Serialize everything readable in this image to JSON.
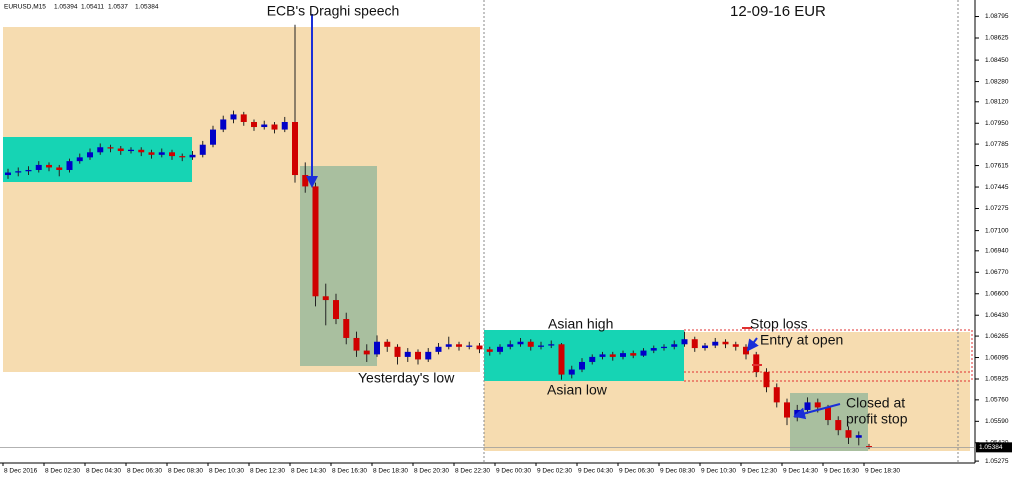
{
  "chart_data": {
    "type": "candlestick",
    "symbol": "EURUSD,M15",
    "title": "12-09-16  EUR",
    "annotations": [
      "ECB's Draghi speech",
      "Asian high",
      "Asian low",
      "Yesterday's low",
      "Stop loss",
      "Entry at open",
      "Closed at",
      "profit stop"
    ],
    "up_color": "#0000c8",
    "down_color": "#d00000",
    "ylim": [
      1.0526,
      1.0891
    ],
    "yticks": [
      1.08795,
      1.08625,
      {
        "value": 1.0845,
        "label": "1.08450"
      },
      {
        "value": 1.0828,
        "label": "1.08280"
      },
      {
        "value": 1.0812,
        "label": "1.08120"
      },
      {
        "value": 1.0795,
        "label": "1.07950"
      },
      1.07785,
      1.07615,
      1.07445,
      1.07275,
      {
        "value": 1.071,
        "label": "1.07100"
      },
      {
        "value": 1.0694,
        "label": "1.06940"
      },
      {
        "value": 1.0677,
        "label": "1.06770"
      },
      {
        "value": 1.066,
        "label": "1.06600"
      },
      {
        "value": 1.0643,
        "label": "1.06430"
      },
      1.06265,
      1.06095,
      1.05925,
      {
        "value": 1.0576,
        "label": "1.05760"
      },
      {
        "value": 1.0559,
        "label": "1.05590"
      },
      {
        "value": 1.0542,
        "label": "1.05420"
      },
      1.05275
    ],
    "x_labels": [
      "8 Dec 2016",
      "8 Dec 02:30",
      "8 Dec 04:30",
      "8 Dec 06:30",
      "8 Dec 08:30",
      "8 Dec 10:30",
      "8 Dec 12:30",
      "8 Dec 14:30",
      "8 Dec 16:30",
      "8 Dec 18:30",
      "8 Dec 20:30",
      "8 Dec 22:30",
      "9 Dec 00:30",
      "9 Dec 02:30",
      "9 Dec 04:30",
      "9 Dec 06:30",
      "9 Dec 08:30",
      "9 Dec 10:30",
      "9 Dec 12:30",
      "9 Dec 14:30",
      "9 Dec 16:30",
      "9 Dec 18:30"
    ],
    "ohlc": [
      [
        1.0754,
        1.0759,
        1.0751,
        1.0756
      ],
      [
        1.0756,
        1.076,
        1.0753,
        1.0757
      ],
      [
        1.0757,
        1.0761,
        1.0754,
        1.0758
      ],
      [
        1.0758,
        1.0765,
        1.0756,
        1.0762
      ],
      [
        1.0762,
        1.0764,
        1.0757,
        1.076
      ],
      [
        1.076,
        1.0762,
        1.0753,
        1.0758
      ],
      [
        1.0758,
        1.0767,
        1.0756,
        1.0765
      ],
      [
        1.0765,
        1.0771,
        1.0763,
        1.0768
      ],
      [
        1.0768,
        1.0775,
        1.0766,
        1.0772
      ],
      [
        1.0772,
        1.0779,
        1.077,
        1.0776
      ],
      [
        1.0776,
        1.0778,
        1.0772,
        1.0775
      ],
      [
        1.0775,
        1.0777,
        1.077,
        1.0773
      ],
      [
        1.0773,
        1.0776,
        1.0771,
        1.0774
      ],
      [
        1.0774,
        1.0776,
        1.0769,
        1.0772
      ],
      [
        1.0772,
        1.0774,
        1.0767,
        1.077
      ],
      [
        1.077,
        1.0775,
        1.0768,
        1.0772
      ],
      [
        1.0772,
        1.0774,
        1.0766,
        1.0769
      ],
      [
        1.0769,
        1.0771,
        1.0765,
        1.0768
      ],
      [
        1.0768,
        1.0773,
        1.0766,
        1.077
      ],
      [
        1.077,
        1.0781,
        1.0768,
        1.0778
      ],
      [
        1.0778,
        1.0793,
        1.0776,
        1.079
      ],
      [
        1.079,
        1.0801,
        1.0788,
        1.0798
      ],
      [
        1.0798,
        1.0805,
        1.0795,
        1.0802
      ],
      [
        1.0802,
        1.0804,
        1.0793,
        1.0796
      ],
      [
        1.0796,
        1.0798,
        1.0789,
        1.0792
      ],
      [
        1.0792,
        1.0797,
        1.079,
        1.0794
      ],
      [
        1.0794,
        1.0796,
        1.0787,
        1.079
      ],
      [
        1.079,
        1.08,
        1.0788,
        1.0796
      ],
      [
        1.0796,
        1.0873,
        1.0748,
        1.0754
      ],
      [
        1.0754,
        1.0764,
        1.074,
        1.0745
      ],
      [
        1.0745,
        1.0748,
        1.065,
        1.0658
      ],
      [
        1.0658,
        1.0668,
        1.0635,
        1.0655
      ],
      [
        1.0655,
        1.066,
        1.0636,
        1.064
      ],
      [
        1.064,
        1.0645,
        1.062,
        1.0625
      ],
      [
        1.0625,
        1.063,
        1.061,
        1.0615
      ],
      [
        1.0615,
        1.062,
        1.0606,
        1.0612
      ],
      [
        1.0612,
        1.0627,
        1.061,
        1.0622
      ],
      [
        1.0622,
        1.0624,
        1.0614,
        1.0618
      ],
      [
        1.0618,
        1.062,
        1.0604,
        1.061
      ],
      [
        1.061,
        1.0617,
        1.0606,
        1.0614
      ],
      [
        1.0614,
        1.0616,
        1.0604,
        1.0608
      ],
      [
        1.0608,
        1.0617,
        1.0606,
        1.0614
      ],
      [
        1.0614,
        1.0621,
        1.0612,
        1.0618
      ],
      [
        1.0618,
        1.0626,
        1.0616,
        1.062
      ],
      [
        1.062,
        1.0622,
        1.0615,
        1.0618
      ],
      [
        1.0618,
        1.0622,
        1.0616,
        1.0619
      ],
      [
        1.0619,
        1.0621,
        1.0613,
        1.0616
      ],
      [
        1.0616,
        1.0618,
        1.0611,
        1.0614
      ],
      [
        1.0614,
        1.062,
        1.0612,
        1.0618
      ],
      [
        1.0618,
        1.0623,
        1.0616,
        1.062
      ],
      [
        1.062,
        1.0625,
        1.0618,
        1.0622
      ],
      [
        1.0622,
        1.0624,
        1.0615,
        1.0618
      ],
      [
        1.0618,
        1.0622,
        1.0616,
        1.0619
      ],
      [
        1.0619,
        1.0623,
        1.0617,
        1.062
      ],
      [
        1.062,
        1.0621,
        1.0592,
        1.0596
      ],
      [
        1.0596,
        1.0603,
        1.0593,
        1.06
      ],
      [
        1.06,
        1.0609,
        1.0598,
        1.0606
      ],
      [
        1.0606,
        1.0612,
        1.0604,
        1.061
      ],
      [
        1.061,
        1.0614,
        1.0608,
        1.0612
      ],
      [
        1.0612,
        1.0614,
        1.0607,
        1.061
      ],
      [
        1.061,
        1.0615,
        1.0608,
        1.0613
      ],
      [
        1.0613,
        1.0615,
        1.0609,
        1.0611
      ],
      [
        1.0611,
        1.0617,
        1.061,
        1.0615
      ],
      [
        1.0615,
        1.0619,
        1.0613,
        1.0617
      ],
      [
        1.0617,
        1.062,
        1.0615,
        1.0618
      ],
      [
        1.0618,
        1.0623,
        1.0616,
        1.062
      ],
      [
        1.062,
        1.063,
        1.0618,
        1.0624
      ],
      [
        1.0624,
        1.0626,
        1.0614,
        1.0617
      ],
      [
        1.0617,
        1.0621,
        1.0615,
        1.0619
      ],
      [
        1.0619,
        1.0625,
        1.0617,
        1.0622
      ],
      [
        1.0622,
        1.0624,
        1.0617,
        1.062
      ],
      [
        1.062,
        1.0622,
        1.0615,
        1.0618
      ],
      [
        1.0618,
        1.062,
        1.0608,
        1.0612
      ],
      [
        1.0612,
        1.0614,
        1.0594,
        1.0598
      ],
      [
        1.0598,
        1.0601,
        1.0582,
        1.0586
      ],
      [
        1.0586,
        1.0589,
        1.057,
        1.0574
      ],
      [
        1.0574,
        1.0577,
        1.0556,
        1.0562
      ],
      [
        1.0562,
        1.0572,
        1.0559,
        1.0568
      ],
      [
        1.0568,
        1.0578,
        1.0565,
        1.0574
      ],
      [
        1.0574,
        1.0577,
        1.0566,
        1.057
      ],
      [
        1.057,
        1.0572,
        1.0556,
        1.056
      ],
      [
        1.056,
        1.0563,
        1.0548,
        1.0552
      ],
      [
        1.0552,
        1.0555,
        1.0541,
        1.0546
      ],
      [
        1.0546,
        1.0551,
        1.054,
        1.0548
      ],
      [
        1.05394,
        1.05411,
        1.0537,
        1.05384
      ]
    ]
  }
}
